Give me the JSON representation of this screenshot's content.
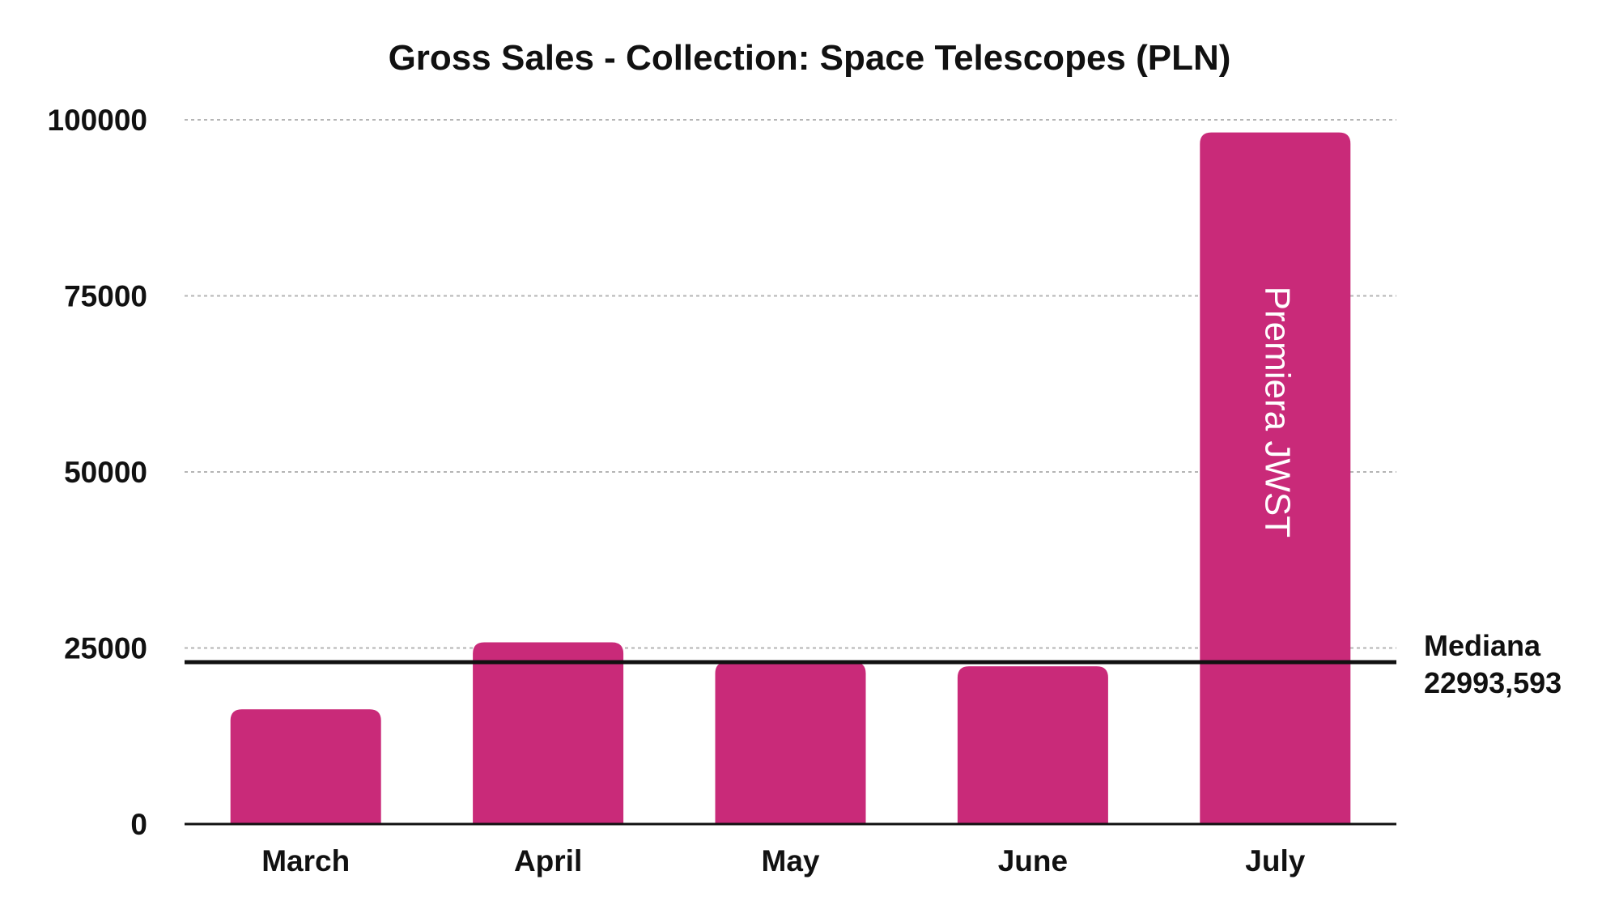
{
  "chart_data": {
    "type": "bar",
    "title": "Gross Sales - Collection: Space Telescopes (PLN)",
    "xlabel": "",
    "ylabel": "",
    "categories": [
      "March",
      "April",
      "May",
      "June",
      "July"
    ],
    "values": [
      16300,
      25800,
      22993.593,
      22400,
      98200
    ],
    "ylim": [
      0,
      100000
    ],
    "yticks": [
      0,
      25000,
      50000,
      75000,
      100000
    ],
    "ytick_labels": [
      "0",
      "25000",
      "50000",
      "75000",
      "100000"
    ],
    "grid": "horizontal dotted",
    "legend": "none",
    "bar_color": "#C92A79",
    "reference_line": {
      "name": "Mediana",
      "value": 22993.593,
      "label_line1": "Mediana",
      "label_line2": "22993,593",
      "color": "#111111"
    },
    "annotations": [
      {
        "category": "July",
        "text": "Premiera JWST",
        "color": "#ffffff"
      }
    ]
  }
}
